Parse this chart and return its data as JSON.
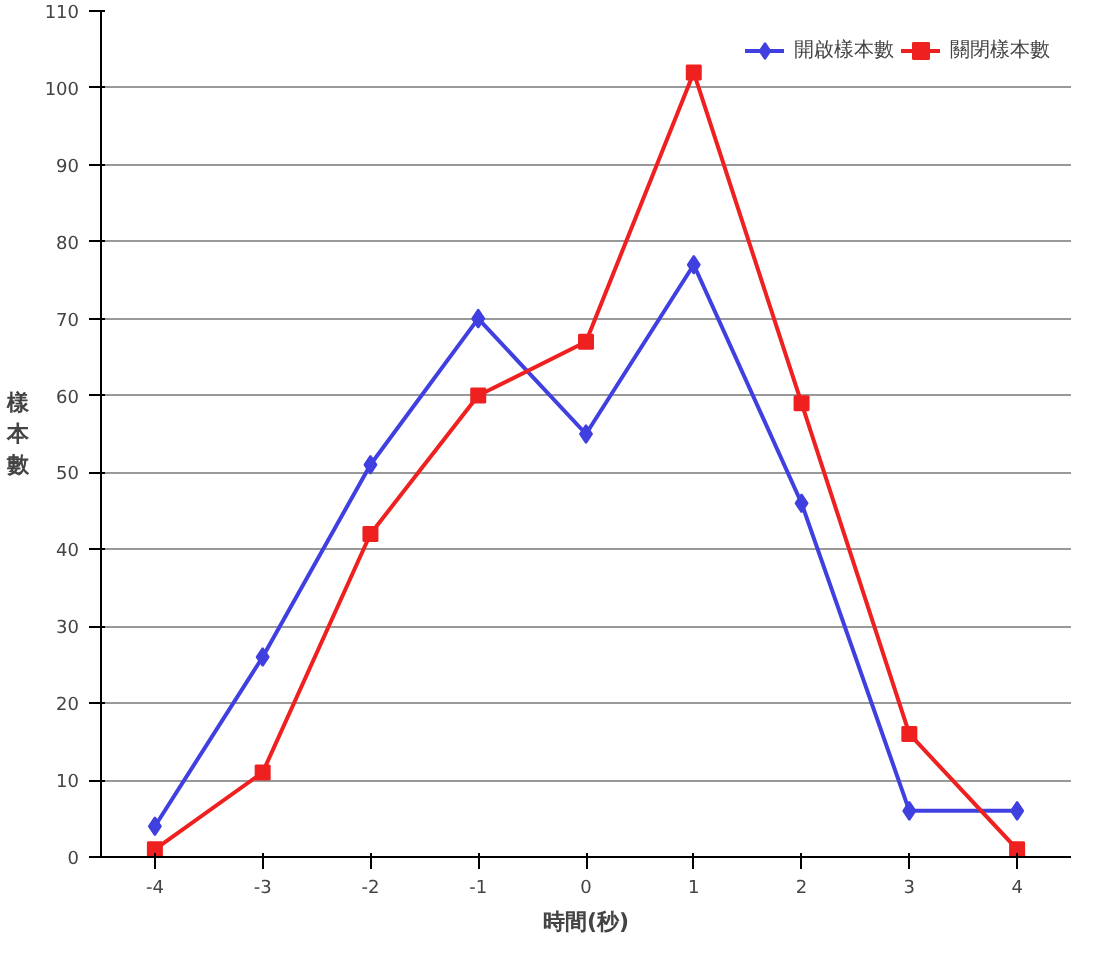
{
  "chart_data": {
    "type": "line",
    "xlabel": "時間(秒)",
    "ylabel": "樣本數",
    "categories": [
      "-4",
      "-3",
      "-2",
      "-1",
      "0",
      "1",
      "2",
      "3",
      "4"
    ],
    "series": [
      {
        "name": "開啟樣本數",
        "color": "#4040e0",
        "marker": "diamond",
        "values": [
          4,
          26,
          51,
          70,
          55,
          77,
          46,
          6,
          6
        ]
      },
      {
        "name": "關閉樣本數",
        "color": "#ee2020",
        "marker": "square",
        "values": [
          1,
          11,
          42,
          60,
          67,
          102,
          59,
          16,
          1
        ]
      }
    ],
    "ylim": [
      0,
      110
    ],
    "yticks": [
      0,
      10,
      20,
      30,
      40,
      50,
      60,
      70,
      80,
      90,
      100,
      110
    ],
    "grid": "y",
    "legend": "top right"
  }
}
